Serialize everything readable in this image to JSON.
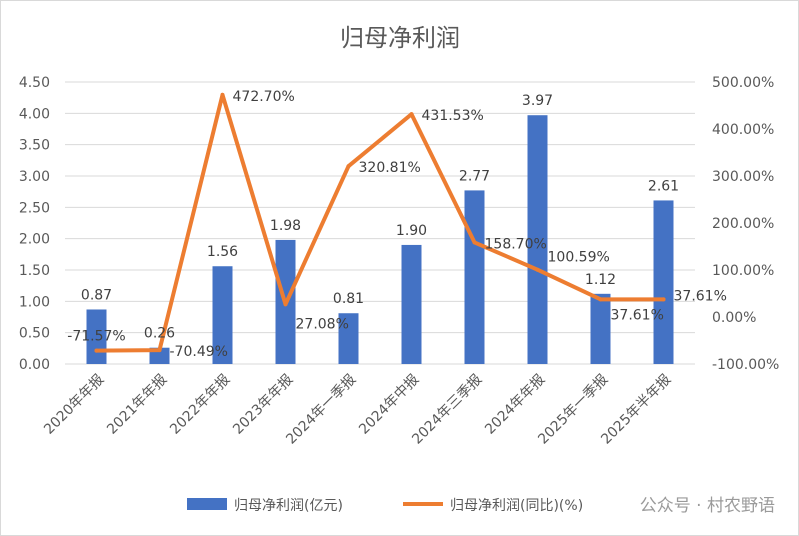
{
  "chart_data": {
    "type": "bar+line",
    "title": "归母净利润",
    "categories": [
      "2020年年报",
      "2021年年报",
      "2022年年报",
      "2023年年报",
      "2024年一季报",
      "2024年中报",
      "2024年三季报",
      "2024年年报",
      "2025年一季报",
      "2025年半年报"
    ],
    "series": [
      {
        "name": "归母净利润(亿元)",
        "type": "bar",
        "axis": "left",
        "color": "#4472C4",
        "values": [
          0.87,
          0.26,
          1.56,
          1.98,
          0.81,
          1.9,
          2.77,
          3.97,
          1.12,
          2.61
        ],
        "labels": [
          "0.87",
          "0.26",
          "1.56",
          "1.98",
          "0.81",
          "1.90",
          "2.77",
          "3.97",
          "1.12",
          "2.61"
        ]
      },
      {
        "name": "归母净利润(同比)(%)",
        "type": "line",
        "axis": "right",
        "color": "#ED7D31",
        "values": [
          -71.57,
          -70.49,
          472.7,
          27.08,
          320.81,
          431.53,
          158.7,
          100.59,
          37.61,
          37.61
        ],
        "labels": [
          "-71.57%",
          "-70.49%",
          "472.70%",
          "27.08%",
          "320.81%",
          "431.53%",
          "158.70%",
          "100.59%",
          "37.61%",
          "37.61%"
        ]
      }
    ],
    "left_axis": {
      "range": [
        0,
        4.5
      ],
      "ticks": [
        "0.00",
        "0.50",
        "1.00",
        "1.50",
        "2.00",
        "2.50",
        "3.00",
        "3.50",
        "4.00",
        "4.50"
      ]
    },
    "right_axis": {
      "range": [
        -100,
        500
      ],
      "ticks": [
        "-100.00%",
        "0.00%",
        "100.00%",
        "200.00%",
        "300.00%",
        "400.00%",
        "500.00%"
      ]
    },
    "grid": true,
    "legend": "bottom"
  },
  "watermark": "公众号 · 村农野语"
}
